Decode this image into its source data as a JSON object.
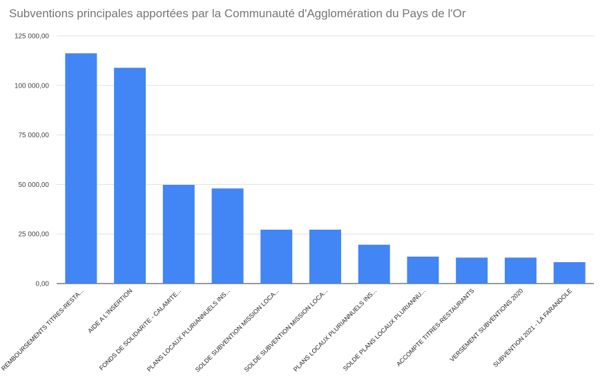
{
  "chart_data": {
    "type": "bar",
    "title": "Subventions principales apportées par la Communauté d'Agglomération du Pays de l'Or",
    "categories": [
      "REMBOURSEMENTS TITRES-RESTA...",
      "AIDE A L'INSERTION",
      "FONDS DE SOLIDARITE - CALAMITE...",
      "PLANS LOCAUX PLURIANNUELS INS...",
      "SOLDE SUBVENTION MISSION LOCA...",
      "SOLDE SUBVENTION MISSION LOCA...",
      "PLANS LOCAUX PLURIANNUELS INS...",
      "SOLDE PLANS LOCAUX PLURIANNU...",
      "ACCOMPTE TITRES-RESTAURANTS",
      "VERSEMENT SUBVENTIONS 2020",
      "SUBVENTION 2021 - LA FARANDOLE"
    ],
    "values": [
      116200,
      108900,
      49800,
      48000,
      27200,
      27200,
      19600,
      13600,
      13100,
      13100,
      10800
    ],
    "y_ticks": [
      "0,00",
      "25 000,00",
      "50 000,00",
      "75 000,00",
      "100 000,00",
      "125 000,00"
    ],
    "ylim": [
      0,
      125000
    ],
    "xlabel": "",
    "ylabel": "",
    "grid": true,
    "bar_color": "#4285f4",
    "grid_color": "#e0e0e0"
  }
}
